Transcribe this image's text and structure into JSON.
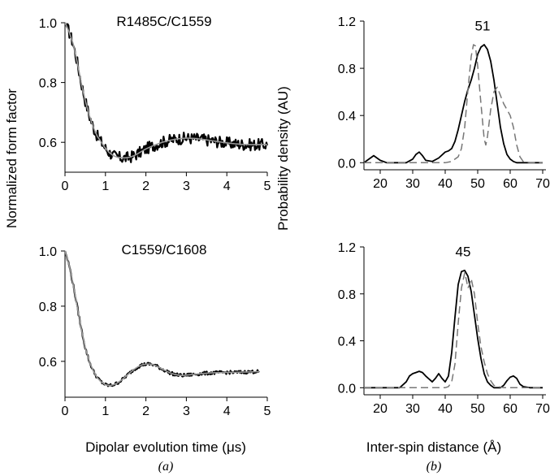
{
  "figure": {
    "ylabel_left": "Normalized form factor",
    "ylabel_right": "Probability density (AU)",
    "xlabel_left": "Dipolar evolution time (μs)",
    "xlabel_right": "Inter-spin distance (Å)",
    "panel_a": "(a)",
    "panel_b": "(b)",
    "colors": {
      "experimental": "#000000",
      "fit": "#999999",
      "dashed": "#777777"
    }
  },
  "chart_data": [
    {
      "id": "top-left",
      "type": "line",
      "title": "R1485C/C1559",
      "xlim": [
        0,
        5
      ],
      "ylim": [
        0.5,
        1.0
      ],
      "xticks": [
        0,
        1,
        2,
        3,
        4,
        5
      ],
      "yticks": [
        0.6,
        0.8,
        1.0
      ],
      "ytick_labels": [
        "0.6",
        "0.8",
        "1.0"
      ],
      "series": [
        {
          "style": "noisy",
          "x": [
            0,
            0.1,
            0.2,
            0.3,
            0.4,
            0.5,
            0.6,
            0.7,
            0.8,
            0.9,
            1.0,
            1.1,
            1.2,
            1.3,
            1.4,
            1.5,
            1.6,
            1.7,
            1.8,
            1.9,
            2.0,
            2.2,
            2.4,
            2.6,
            2.8,
            3.0,
            3.2,
            3.4,
            3.6,
            3.8,
            4.0,
            4.2,
            4.4,
            4.6,
            4.8,
            5.0
          ],
          "y": [
            1.0,
            0.97,
            0.93,
            0.87,
            0.8,
            0.74,
            0.69,
            0.65,
            0.62,
            0.6,
            0.58,
            0.565,
            0.555,
            0.55,
            0.548,
            0.548,
            0.55,
            0.555,
            0.562,
            0.57,
            0.578,
            0.59,
            0.6,
            0.607,
            0.612,
            0.614,
            0.613,
            0.61,
            0.606,
            0.602,
            0.598,
            0.595,
            0.593,
            0.592,
            0.592,
            0.592
          ],
          "noise": 0.02
        },
        {
          "style": "fit",
          "x": [
            0,
            0.1,
            0.2,
            0.3,
            0.4,
            0.5,
            0.6,
            0.7,
            0.8,
            0.9,
            1.0,
            1.1,
            1.2,
            1.3,
            1.4,
            1.5,
            1.6,
            1.7,
            1.8,
            1.9,
            2.0,
            2.2,
            2.4,
            2.6,
            2.8,
            3.0,
            3.2,
            3.4,
            3.6,
            3.8,
            4.0,
            4.2,
            4.4,
            4.6,
            4.8,
            5.0
          ],
          "y": [
            1.0,
            0.97,
            0.93,
            0.87,
            0.8,
            0.74,
            0.69,
            0.65,
            0.62,
            0.6,
            0.58,
            0.565,
            0.555,
            0.55,
            0.548,
            0.548,
            0.55,
            0.555,
            0.562,
            0.57,
            0.578,
            0.59,
            0.6,
            0.607,
            0.612,
            0.614,
            0.613,
            0.61,
            0.606,
            0.602,
            0.598,
            0.595,
            0.593,
            0.592,
            0.592,
            0.592
          ]
        }
      ]
    },
    {
      "id": "top-right",
      "type": "line",
      "annotation": "51",
      "annotation_x": 51.5,
      "annotation_y": 1.12,
      "xlim": [
        15,
        71
      ],
      "ylim": [
        -0.06,
        1.2
      ],
      "xticks": [
        20,
        30,
        40,
        50,
        60,
        70
      ],
      "yticks": [
        0.0,
        0.4,
        0.8,
        1.2
      ],
      "ytick_labels": [
        "0.0",
        "0.4",
        "0.8",
        "1.2"
      ],
      "series": [
        {
          "style": "solid",
          "x": [
            15,
            16,
            18,
            20,
            22,
            24,
            26,
            28,
            30,
            31,
            32,
            33,
            34,
            36,
            38,
            40,
            41,
            42,
            43,
            44,
            45,
            46,
            47,
            48,
            49,
            50,
            51,
            52,
            53,
            54,
            55,
            56,
            57,
            58,
            59,
            60,
            61,
            62,
            64,
            66,
            68,
            70
          ],
          "y": [
            0.0,
            0.02,
            0.06,
            0.02,
            0.0,
            0.0,
            0.0,
            0.0,
            0.03,
            0.07,
            0.09,
            0.06,
            0.02,
            0.01,
            0.04,
            0.09,
            0.1,
            0.12,
            0.18,
            0.28,
            0.4,
            0.52,
            0.62,
            0.7,
            0.8,
            0.92,
            0.98,
            1.0,
            0.96,
            0.86,
            0.7,
            0.5,
            0.3,
            0.16,
            0.07,
            0.03,
            0.01,
            0.0,
            0.0,
            0.0,
            0.0,
            0.0
          ]
        },
        {
          "style": "dashed",
          "x": [
            15,
            20,
            25,
            30,
            35,
            40,
            42,
            44,
            45,
            46,
            47,
            48,
            48.7,
            49.3,
            50,
            51,
            52,
            52.5,
            53,
            54,
            55,
            56,
            57,
            58,
            59,
            60,
            61,
            62,
            63,
            64,
            66,
            70
          ],
          "y": [
            0.0,
            0.0,
            0.0,
            0.0,
            0.0,
            0.0,
            0.01,
            0.05,
            0.12,
            0.3,
            0.62,
            0.9,
            1.0,
            0.99,
            0.82,
            0.5,
            0.2,
            0.15,
            0.22,
            0.45,
            0.6,
            0.64,
            0.57,
            0.5,
            0.45,
            0.4,
            0.3,
            0.15,
            0.05,
            0.01,
            0.0,
            0.0
          ]
        }
      ]
    },
    {
      "id": "bottom-left",
      "type": "line",
      "title": "C1559/C1608",
      "xlim": [
        0,
        5
      ],
      "ylim": [
        0.47,
        1.0
      ],
      "xticks": [
        0,
        1,
        2,
        3,
        4,
        5
      ],
      "yticks": [
        0.6,
        0.8,
        1.0
      ],
      "ytick_labels": [
        "0.6",
        "0.8",
        "1.0"
      ],
      "series": [
        {
          "style": "noisy",
          "x": [
            0,
            0.1,
            0.2,
            0.3,
            0.4,
            0.5,
            0.6,
            0.7,
            0.8,
            0.9,
            1.0,
            1.1,
            1.2,
            1.3,
            1.4,
            1.5,
            1.6,
            1.7,
            1.8,
            1.9,
            2.0,
            2.1,
            2.2,
            2.3,
            2.4,
            2.5,
            2.6,
            2.7,
            2.8,
            2.9,
            3.0,
            3.2,
            3.4,
            3.6,
            3.8,
            4.0,
            4.2,
            4.4,
            4.6,
            4.8
          ],
          "y": [
            1.0,
            0.95,
            0.88,
            0.8,
            0.72,
            0.65,
            0.6,
            0.565,
            0.54,
            0.525,
            0.515,
            0.512,
            0.515,
            0.522,
            0.532,
            0.545,
            0.558,
            0.57,
            0.58,
            0.587,
            0.59,
            0.59,
            0.587,
            0.58,
            0.572,
            0.565,
            0.558,
            0.553,
            0.55,
            0.549,
            0.55,
            0.553,
            0.556,
            0.558,
            0.559,
            0.56,
            0.56,
            0.561,
            0.562,
            0.563
          ],
          "noise": 0.006
        },
        {
          "style": "fit",
          "x": [
            0,
            0.1,
            0.2,
            0.3,
            0.4,
            0.5,
            0.6,
            0.7,
            0.8,
            0.9,
            1.0,
            1.1,
            1.2,
            1.3,
            1.4,
            1.5,
            1.6,
            1.7,
            1.8,
            1.9,
            2.0,
            2.1,
            2.2,
            2.3,
            2.4,
            2.5,
            2.6,
            2.7,
            2.8,
            2.9,
            3.0,
            3.2,
            3.4,
            3.6,
            3.8,
            4.0,
            4.2,
            4.4,
            4.6,
            4.8
          ],
          "y": [
            1.0,
            0.95,
            0.88,
            0.8,
            0.72,
            0.65,
            0.6,
            0.565,
            0.54,
            0.525,
            0.515,
            0.512,
            0.515,
            0.522,
            0.532,
            0.545,
            0.558,
            0.57,
            0.58,
            0.587,
            0.59,
            0.59,
            0.587,
            0.58,
            0.572,
            0.565,
            0.558,
            0.553,
            0.55,
            0.549,
            0.55,
            0.553,
            0.556,
            0.558,
            0.559,
            0.56,
            0.56,
            0.561,
            0.562,
            0.563
          ]
        }
      ]
    },
    {
      "id": "bottom-right",
      "type": "line",
      "annotation": "45",
      "annotation_x": 45.5,
      "annotation_y": 1.12,
      "xlim": [
        15,
        71
      ],
      "ylim": [
        -0.06,
        1.2
      ],
      "xticks": [
        20,
        30,
        40,
        50,
        60,
        70
      ],
      "yticks": [
        0.0,
        0.4,
        0.8,
        1.2
      ],
      "ytick_labels": [
        "0.0",
        "0.4",
        "0.8",
        "1.2"
      ],
      "series": [
        {
          "style": "solid",
          "x": [
            15,
            20,
            24,
            26,
            28,
            29,
            30,
            31,
            32,
            33,
            34,
            36,
            37,
            38,
            39,
            40,
            41,
            42,
            43,
            44,
            45,
            46,
            47,
            48,
            49,
            50,
            51,
            52,
            53,
            54,
            55,
            56,
            57,
            58,
            59,
            60,
            61,
            62,
            63,
            64,
            66,
            70
          ],
          "y": [
            0.0,
            0.0,
            0.0,
            0.0,
            0.05,
            0.1,
            0.12,
            0.13,
            0.14,
            0.13,
            0.1,
            0.05,
            0.08,
            0.12,
            0.08,
            0.05,
            0.1,
            0.3,
            0.6,
            0.88,
            0.99,
            1.0,
            0.95,
            0.82,
            0.62,
            0.42,
            0.25,
            0.12,
            0.05,
            0.02,
            0.0,
            0.0,
            0.0,
            0.02,
            0.06,
            0.09,
            0.1,
            0.08,
            0.03,
            0.01,
            0.0,
            0.0
          ]
        },
        {
          "style": "dashed",
          "x": [
            15,
            20,
            25,
            30,
            35,
            40,
            41,
            42,
            43,
            44,
            45,
            46,
            46.5,
            47,
            47.5,
            48,
            49,
            50,
            51,
            52,
            53,
            54,
            55,
            56,
            58,
            60,
            65,
            70
          ],
          "y": [
            0.0,
            0.0,
            0.0,
            0.0,
            0.0,
            0.0,
            0.01,
            0.05,
            0.2,
            0.55,
            0.85,
            0.98,
            0.92,
            0.85,
            0.88,
            0.93,
            0.8,
            0.55,
            0.35,
            0.22,
            0.12,
            0.06,
            0.02,
            0.01,
            0.0,
            0.0,
            0.0,
            0.0
          ]
        }
      ]
    }
  ]
}
